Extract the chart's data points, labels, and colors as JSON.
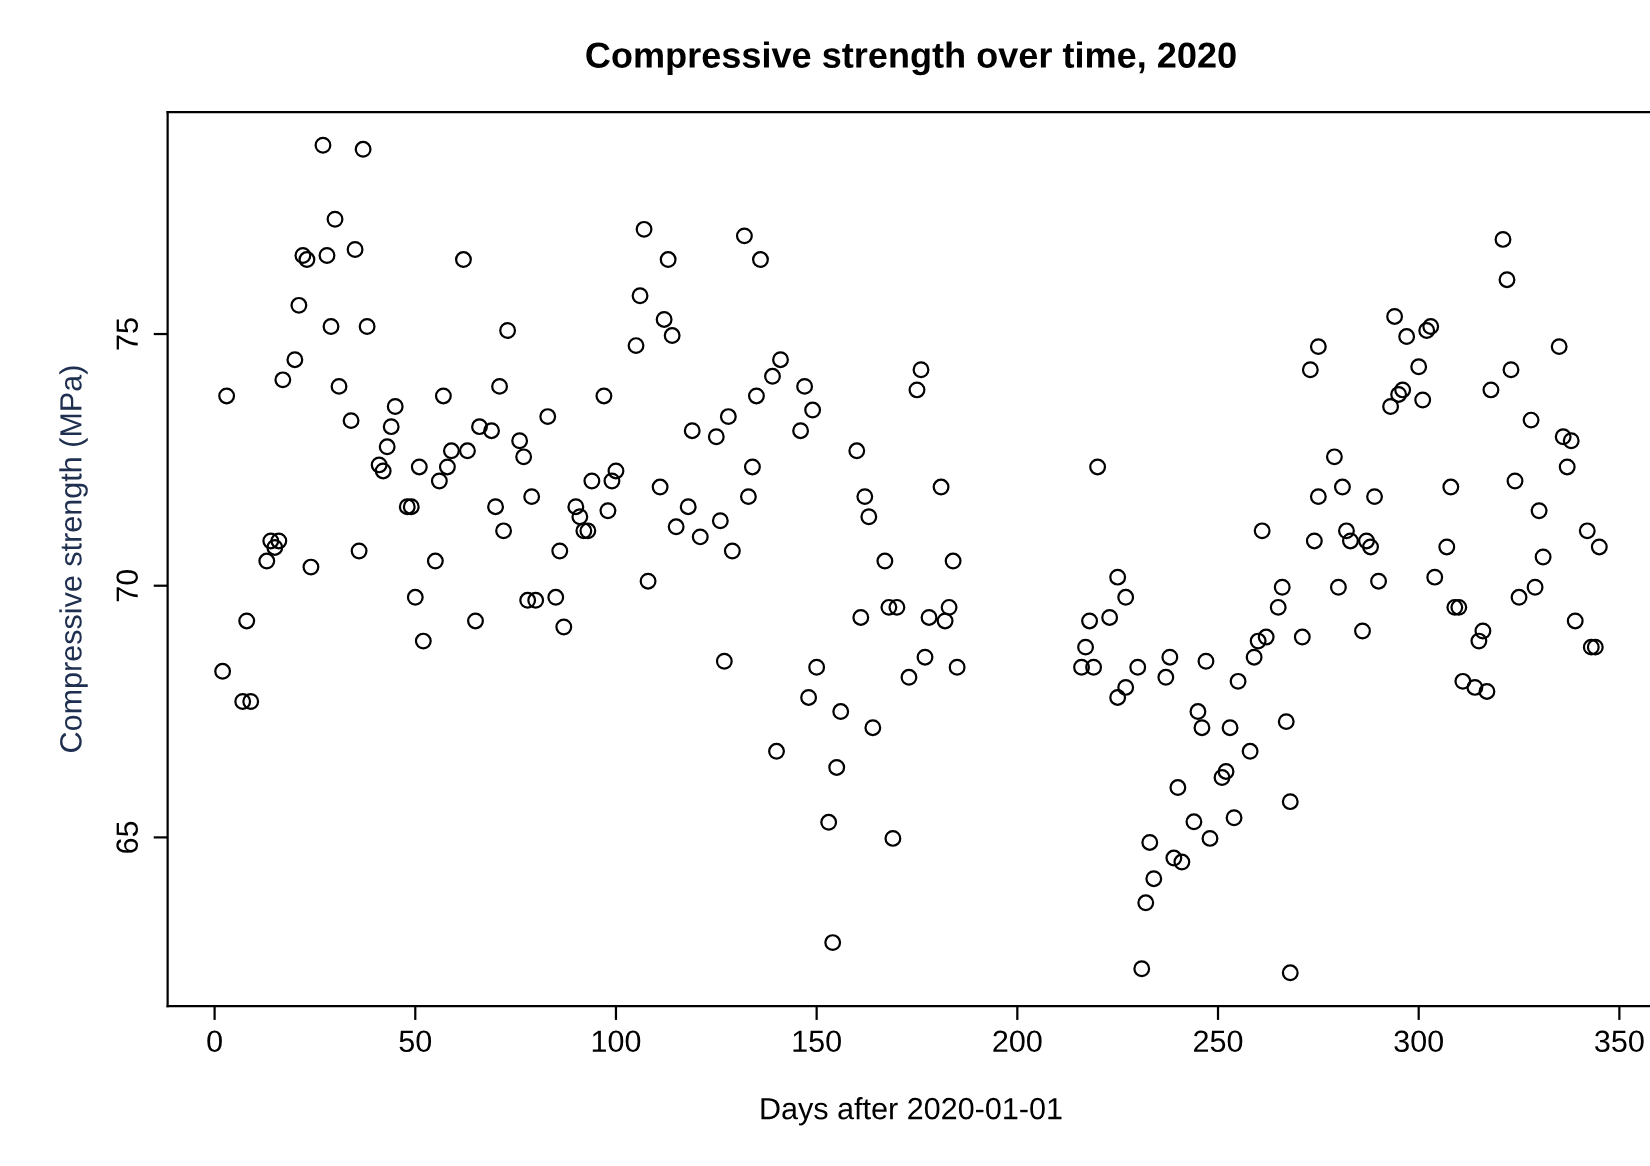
{
  "chart_data": {
    "type": "scatter",
    "title": "Compressive strength over time, 2020",
    "xlabel": "Days after 2020-01-01",
    "ylabel": "Compressive strength (MPa)",
    "xlim": [
      -11.7,
      358.7
    ],
    "ylim": [
      61.65,
      79.41
    ],
    "xticks": [
      0,
      50,
      100,
      150,
      200,
      250,
      300,
      350
    ],
    "yticks": [
      65,
      70,
      75
    ],
    "marker": "circle",
    "series": [
      {
        "color": "#000000",
        "x": [
          27,
          37,
          30,
          22,
          23,
          28,
          35,
          62,
          21,
          29,
          38,
          73,
          20,
          17,
          31,
          3,
          57,
          71,
          45,
          34,
          44,
          66,
          69,
          43,
          76,
          77,
          41,
          42,
          51,
          59,
          63,
          58,
          56,
          83,
          48,
          49,
          70,
          79,
          72,
          14,
          16,
          15,
          13,
          24,
          36,
          55,
          50,
          78,
          80,
          65,
          8,
          52,
          2,
          7,
          9,
          107,
          132,
          113,
          136,
          106,
          112,
          114,
          105,
          141,
          139,
          147,
          97,
          135,
          149,
          128,
          119,
          125,
          146,
          160,
          100,
          134,
          94,
          99,
          111,
          90,
          91,
          92,
          93,
          98,
          118,
          133,
          162,
          163,
          115,
          126,
          121,
          86,
          129,
          167,
          108,
          85,
          168,
          170,
          161,
          87,
          127,
          150,
          148,
          156,
          164,
          173,
          140,
          155,
          153,
          169,
          154,
          176,
          175,
          181,
          220,
          184,
          178,
          183,
          182,
          177,
          185,
          261,
          225,
          227,
          218,
          223,
          217,
          216,
          219,
          230,
          227,
          225,
          238,
          237,
          247,
          255,
          259,
          260,
          262,
          245,
          246,
          253,
          258,
          240,
          251,
          252,
          244,
          254,
          248,
          233,
          239,
          241,
          234,
          232,
          231,
          321,
          322,
          294,
          297,
          302,
          303,
          275,
          273,
          335,
          300,
          323,
          318,
          296,
          295,
          293,
          301,
          328,
          336,
          338,
          337,
          279,
          324,
          281,
          308,
          275,
          289,
          330,
          282,
          274,
          283,
          287,
          288,
          307,
          342,
          345,
          331,
          304,
          280,
          290,
          266,
          265,
          329,
          325,
          309,
          310,
          339,
          343,
          344,
          316,
          315,
          271,
          286,
          311,
          314,
          317,
          267,
          268,
          268
        ],
        "values": [
          78.75,
          78.67,
          77.28,
          76.56,
          76.48,
          76.56,
          76.68,
          76.48,
          75.57,
          75.15,
          75.15,
          75.07,
          74.49,
          74.09,
          73.96,
          73.77,
          73.77,
          73.96,
          73.56,
          73.28,
          73.16,
          73.16,
          73.08,
          72.76,
          72.88,
          72.56,
          72.4,
          72.28,
          72.36,
          72.68,
          72.68,
          72.36,
          72.08,
          73.36,
          71.57,
          71.57,
          71.57,
          71.77,
          71.09,
          70.89,
          70.89,
          70.76,
          70.49,
          70.37,
          70.69,
          70.49,
          69.77,
          69.71,
          69.71,
          69.3,
          69.3,
          68.9,
          68.3,
          67.7,
          67.7,
          77.08,
          76.95,
          76.48,
          76.48,
          75.76,
          75.29,
          74.97,
          74.77,
          74.49,
          74.16,
          73.96,
          73.77,
          73.77,
          73.49,
          73.36,
          73.08,
          72.96,
          73.08,
          72.68,
          72.28,
          72.36,
          72.08,
          72.08,
          71.96,
          71.57,
          71.37,
          71.09,
          71.09,
          71.49,
          71.57,
          71.77,
          71.77,
          71.37,
          71.17,
          71.29,
          70.97,
          70.69,
          70.69,
          70.49,
          70.09,
          69.77,
          69.57,
          69.57,
          69.37,
          69.18,
          68.5,
          68.38,
          67.78,
          67.5,
          67.18,
          68.18,
          66.71,
          66.39,
          65.3,
          64.98,
          62.91,
          74.29,
          73.89,
          71.96,
          72.36,
          70.49,
          69.37,
          69.57,
          69.3,
          68.58,
          68.38,
          71.09,
          70.17,
          69.77,
          69.3,
          69.37,
          68.78,
          68.38,
          68.38,
          68.38,
          67.98,
          67.78,
          68.58,
          68.18,
          68.5,
          68.1,
          68.58,
          68.9,
          68.98,
          67.5,
          67.18,
          67.18,
          66.71,
          65.99,
          66.19,
          66.31,
          65.31,
          65.39,
          64.98,
          64.9,
          64.59,
          64.51,
          64.18,
          63.7,
          62.39,
          76.88,
          76.08,
          75.35,
          74.95,
          75.07,
          75.15,
          74.75,
          74.29,
          74.75,
          74.35,
          74.29,
          73.89,
          73.89,
          73.8,
          73.56,
          73.69,
          73.29,
          72.96,
          72.88,
          72.36,
          72.56,
          72.08,
          71.96,
          71.96,
          71.77,
          71.77,
          71.49,
          71.09,
          70.89,
          70.89,
          70.89,
          70.77,
          70.77,
          71.09,
          70.77,
          70.57,
          70.17,
          69.97,
          70.09,
          69.97,
          69.57,
          69.97,
          69.77,
          69.57,
          69.57,
          69.3,
          68.78,
          68.78,
          69.1,
          68.9,
          68.98,
          69.1,
          68.1,
          67.98,
          67.9,
          67.3,
          65.71,
          62.31
        ]
      }
    ]
  }
}
